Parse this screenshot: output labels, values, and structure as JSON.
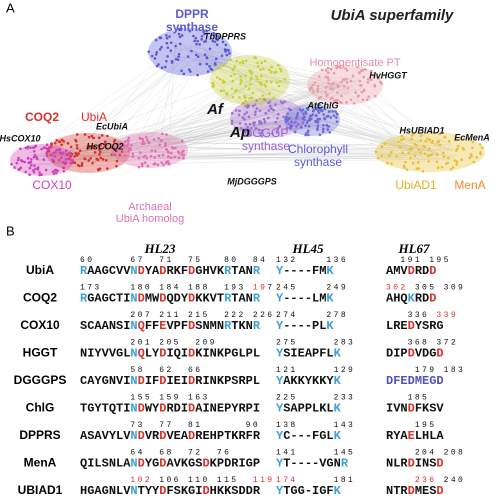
{
  "panel_a": {
    "letter": "A",
    "title": "UbiA superfamily",
    "labels": [
      {
        "lines": [
          "DPPR",
          "synthase"
        ],
        "color": "#5a5ad6"
      },
      {
        "lines": [
          "TbDPPRS"
        ],
        "color": "#111111"
      },
      {
        "lines": [
          "Homogentisate PT"
        ],
        "color": "#e58ea0"
      },
      {
        "lines": [
          "HvHGGT"
        ],
        "color": "#111111"
      },
      {
        "lines": [
          "Af"
        ],
        "color": "#111111"
      },
      {
        "lines": [
          "Ap"
        ],
        "color": "#111111"
      },
      {
        "lines": [
          "AtChlG"
        ],
        "color": "#111111"
      },
      {
        "lines": [
          "COQ2"
        ],
        "color": "#d8302a"
      },
      {
        "lines": [
          "UbiA"
        ],
        "color": "#d8302a"
      },
      {
        "lines": [
          "EcUbiA"
        ],
        "color": "#111111"
      },
      {
        "lines": [
          "HsCOQ2"
        ],
        "color": "#111111"
      },
      {
        "lines": [
          "HsCOX10"
        ],
        "color": "#111111"
      },
      {
        "lines": [
          "COX10"
        ],
        "color": "#d040b8"
      },
      {
        "lines": [
          "Archaeal",
          "UbiA homolog"
        ],
        "color": "#e070b0"
      },
      {
        "lines": [
          "DGGGP",
          "synthase"
        ],
        "color": "#9a60d0"
      },
      {
        "lines": [
          "MjDGGGPS"
        ],
        "color": "#111111"
      },
      {
        "lines": [
          "Chlorophyll",
          "synthase"
        ],
        "color": "#5a5ad6"
      },
      {
        "lines": [
          "HsUBIAD1"
        ],
        "color": "#111111"
      },
      {
        "lines": [
          "EcMenA"
        ],
        "color": "#111111"
      },
      {
        "lines": [
          "UbiAD1"
        ],
        "color": "#e0b020"
      },
      {
        "lines": [
          "MenA"
        ],
        "color": "#f08a30"
      }
    ]
  },
  "panel_b": {
    "letter": "B",
    "headers": [
      "HL23",
      "HL45",
      "HL67"
    ],
    "colors": {
      "b": "#3fa0d8",
      "r": "#d9302a",
      "p": "#5050c0"
    },
    "rows": [
      {
        "name": "UbiA",
        "segments": [
          {
            "nums": "60     67  71  75   80  84",
            "nmask": "",
            "seq": "RAAGCVVNDYADRKFDGHVKRTANR",
            "mask": "b......br..r...r....b...b"
          },
          {
            "nums": "132    136",
            "nmask": "",
            "seq": "Y----FMK",
            "mask": "b......b"
          },
          {
            "nums": "  191 195",
            "nmask": "",
            "seq": "AMVDRDD",
            "mask": "...r..r"
          }
        ]
      },
      {
        "name": "COQ2",
        "segments": [
          {
            "nums": "173    180 184 188  193 197",
            "nmask": "                       rrr",
            "seq": "RGAGCTINDMWDQDYDKKVTRTANR",
            "mask": "b......br..r...r....b...b"
          },
          {
            "nums": "245    249",
            "nmask": "",
            "seq": "Y----LMK",
            "mask": "b......b"
          },
          {
            "nums": "302 305 309",
            "nmask": "rrr",
            "seq": "AHQKRDD",
            "mask": "...b..r"
          }
        ]
      },
      {
        "name": "COX10",
        "segments": [
          {
            "nums": "       207 211 215  222 226",
            "nmask": "",
            "seq": "SCAANSINQFFEVPFDSNMNRTKNR",
            "mask": ".......br..r...r....b...b"
          },
          {
            "nums": "274    278",
            "nmask": "",
            "seq": "Y----PLK",
            "mask": "b......b"
          },
          {
            "nums": "   336 339",
            "nmask": "       rrr",
            "seq": "LREDYSRG",
            "mask": "...r...."
          }
        ]
      },
      {
        "name": "HGGT",
        "segments": [
          {
            "nums": "       201 205  209",
            "nmask": "",
            "seq": "NIYVVGLNQLYDIQIDKINKPGLPL",
            "mask": ".......br..r...r........."
          },
          {
            "nums": "275     283",
            "nmask": "",
            "seq": "YSIEAPFLK",
            "mask": "b.......b"
          },
          {
            "nums": "   368 372",
            "nmask": "",
            "seq": "DIPDVDGD",
            "mask": "...r...r"
          }
        ]
      },
      {
        "name": "DGGGPS",
        "segments": [
          {
            "nums": "       58  62  66",
            "nmask": "",
            "seq": "CAYGNVINDIFDIEIDRINKPSRPL",
            "mask": ".......br..r...r........."
          },
          {
            "nums": "121     129",
            "nmask": "",
            "seq": "YAKKYKKYK",
            "mask": "b.......b"
          },
          {
            "nums": "    179 183",
            "nmask": "",
            "seq": "DFEDMEGD",
            "mask": "ppppppppr"
          }
        ]
      },
      {
        "name": "ChlG",
        "segments": [
          {
            "nums": "       155 159 163",
            "nmask": "",
            "seq": "TGYTQTINDWYDRDIDAINEPYRPI",
            "mask": ".......br..r...r........."
          },
          {
            "nums": "225     233",
            "nmask": "",
            "seq": "YSAPPLKLK",
            "mask": "b.......b"
          },
          {
            "nums": "   185",
            "nmask": "",
            "seq": "IVNDFKSV",
            "mask": "...r...."
          }
        ]
      },
      {
        "name": "DPPRS",
        "segments": [
          {
            "nums": "       73  77  81      90",
            "nmask": "",
            "seq": "ASAVYLVNDVRDVEADREHPTKRFR",
            "mask": ".......br..r...r.........b"
          },
          {
            "nums": "138     143",
            "nmask": "",
            "seq": "YC---FGLK",
            "mask": "b.......b"
          },
          {
            "nums": "    195",
            "nmask": "",
            "seq": "RYAELHLA",
            "mask": "...r...."
          }
        ]
      },
      {
        "name": "MenA",
        "segments": [
          {
            "nums": "       64  68  72  76",
            "nmask": "",
            "seq": "QILSNLANDYGDAVKGSDKPDRIGP",
            "mask": ".......br..r.....r......."
          },
          {
            "nums": "141     145",
            "nmask": "",
            "seq": "YT----VGNR",
            "mask": "b........b"
          },
          {
            "nums": "    204 208",
            "nmask": "",
            "seq": "NLRDINSD",
            "mask": "...r...r"
          }
        ]
      },
      {
        "name": "UBIAD1",
        "segments": [
          {
            "nums": "       102 106 110 115  119",
            "nmask": "       rrr              rrr",
            "seq": "HGAGNLVNTYYDFSKGIDHKKSDDR",
            "mask": ".......b...r.....r.......b"
          },
          {
            "nums": "174     181",
            "nmask": "rrr",
            "seq": "YTGG-IGFK",
            "mask": "b.......b"
          },
          {
            "nums": "    236 240",
            "nmask": "    rrr",
            "seq": "NTRDMESD",
            "mask": "...r...r"
          }
        ]
      }
    ]
  }
}
